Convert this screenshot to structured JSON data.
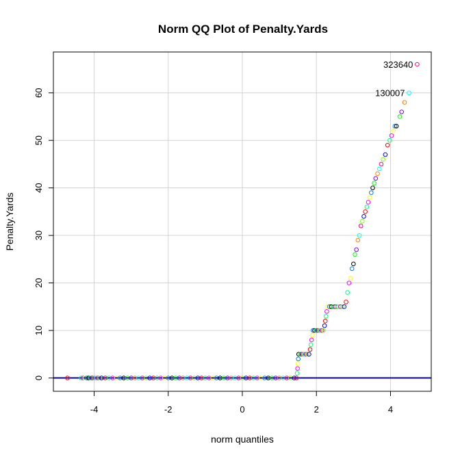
{
  "chart_data": {
    "type": "scatter",
    "title": "Norm QQ Plot of Penalty.Yards",
    "xlabel": "norm quantiles",
    "ylabel": "Penalty.Yards",
    "xlim": [
      -5.1,
      5.1
    ],
    "ylim": [
      -2.8,
      68.6
    ],
    "xticks": [
      -4,
      -2,
      0,
      2,
      4
    ],
    "yticks": [
      0,
      10,
      20,
      30,
      40,
      50,
      60
    ],
    "grid": true,
    "reference_line": {
      "intercept": 0,
      "slope": 0,
      "color": "#00008b"
    },
    "point_marker": "open-circle",
    "point_colors": [
      "#ff0000",
      "#ff8000",
      "#ffff00",
      "#80ff00",
      "#00ff00",
      "#00ff80",
      "#00ffff",
      "#0080ff",
      "#0000ff",
      "#8000ff",
      "#ff00ff",
      "#ff0080",
      "#000000"
    ],
    "points": [
      {
        "x": -4.72,
        "y": 0
      },
      {
        "x": -4.35,
        "y": 0
      },
      {
        "x": -4.3,
        "y": 0
      },
      {
        "x": -4.25,
        "y": 0
      },
      {
        "x": -4.2,
        "y": 0
      },
      {
        "x": -4.15,
        "y": 0
      },
      {
        "x": -4.1,
        "y": 0
      },
      {
        "x": -4.05,
        "y": 0
      },
      {
        "x": -4.0,
        "y": 0
      },
      {
        "x": -3.95,
        "y": 0
      },
      {
        "x": -3.9,
        "y": 0
      },
      {
        "x": -3.85,
        "y": 0
      },
      {
        "x": -3.8,
        "y": 0
      },
      {
        "x": -3.7,
        "y": 0
      },
      {
        "x": -3.6,
        "y": 0
      },
      {
        "x": -3.5,
        "y": 0
      },
      {
        "x": -3.4,
        "y": 0
      },
      {
        "x": -3.3,
        "y": 0
      },
      {
        "x": -3.2,
        "y": 0
      },
      {
        "x": -3.1,
        "y": 0
      },
      {
        "x": -3.0,
        "y": 0
      },
      {
        "x": -2.9,
        "y": 0
      },
      {
        "x": -2.8,
        "y": 0
      },
      {
        "x": -2.7,
        "y": 0
      },
      {
        "x": -2.6,
        "y": 0
      },
      {
        "x": -2.5,
        "y": 0
      },
      {
        "x": -2.4,
        "y": 0
      },
      {
        "x": -2.3,
        "y": 0
      },
      {
        "x": -2.2,
        "y": 0
      },
      {
        "x": -2.1,
        "y": 0
      },
      {
        "x": -2.0,
        "y": 0
      },
      {
        "x": -1.9,
        "y": 0
      },
      {
        "x": -1.8,
        "y": 0
      },
      {
        "x": -1.7,
        "y": 0
      },
      {
        "x": -1.6,
        "y": 0
      },
      {
        "x": -1.5,
        "y": 0
      },
      {
        "x": -1.4,
        "y": 0
      },
      {
        "x": -1.3,
        "y": 0
      },
      {
        "x": -1.2,
        "y": 0
      },
      {
        "x": -1.1,
        "y": 0
      },
      {
        "x": -1.0,
        "y": 0
      },
      {
        "x": -0.9,
        "y": 0
      },
      {
        "x": -0.8,
        "y": 0
      },
      {
        "x": -0.7,
        "y": 0
      },
      {
        "x": -0.6,
        "y": 0
      },
      {
        "x": -0.5,
        "y": 0
      },
      {
        "x": -0.4,
        "y": 0
      },
      {
        "x": -0.3,
        "y": 0
      },
      {
        "x": -0.2,
        "y": 0
      },
      {
        "x": -0.1,
        "y": 0
      },
      {
        "x": 0.0,
        "y": 0
      },
      {
        "x": 0.1,
        "y": 0
      },
      {
        "x": 0.2,
        "y": 0
      },
      {
        "x": 0.3,
        "y": 0
      },
      {
        "x": 0.4,
        "y": 0
      },
      {
        "x": 0.5,
        "y": 0
      },
      {
        "x": 0.6,
        "y": 0
      },
      {
        "x": 0.7,
        "y": 0
      },
      {
        "x": 0.8,
        "y": 0
      },
      {
        "x": 0.9,
        "y": 0
      },
      {
        "x": 1.0,
        "y": 0
      },
      {
        "x": 1.1,
        "y": 0
      },
      {
        "x": 1.2,
        "y": 0
      },
      {
        "x": 1.3,
        "y": 0
      },
      {
        "x": 1.4,
        "y": 0
      },
      {
        "x": 1.46,
        "y": 0
      },
      {
        "x": 1.48,
        "y": 1
      },
      {
        "x": 1.49,
        "y": 2
      },
      {
        "x": 1.5,
        "y": 3
      },
      {
        "x": 1.51,
        "y": 4
      },
      {
        "x": 1.52,
        "y": 5
      },
      {
        "x": 1.56,
        "y": 5
      },
      {
        "x": 1.6,
        "y": 5
      },
      {
        "x": 1.64,
        "y": 5
      },
      {
        "x": 1.68,
        "y": 5
      },
      {
        "x": 1.72,
        "y": 5
      },
      {
        "x": 1.76,
        "y": 5
      },
      {
        "x": 1.8,
        "y": 5
      },
      {
        "x": 1.83,
        "y": 6
      },
      {
        "x": 1.85,
        "y": 7
      },
      {
        "x": 1.87,
        "y": 8
      },
      {
        "x": 1.89,
        "y": 9
      },
      {
        "x": 1.91,
        "y": 10
      },
      {
        "x": 1.95,
        "y": 10
      },
      {
        "x": 1.99,
        "y": 10
      },
      {
        "x": 2.03,
        "y": 10
      },
      {
        "x": 2.07,
        "y": 10
      },
      {
        "x": 2.11,
        "y": 10
      },
      {
        "x": 2.15,
        "y": 10
      },
      {
        "x": 2.19,
        "y": 10
      },
      {
        "x": 2.22,
        "y": 11
      },
      {
        "x": 2.24,
        "y": 12
      },
      {
        "x": 2.26,
        "y": 13
      },
      {
        "x": 2.28,
        "y": 14
      },
      {
        "x": 2.3,
        "y": 15
      },
      {
        "x": 2.35,
        "y": 15
      },
      {
        "x": 2.4,
        "y": 15
      },
      {
        "x": 2.45,
        "y": 15
      },
      {
        "x": 2.5,
        "y": 15
      },
      {
        "x": 2.55,
        "y": 15
      },
      {
        "x": 2.6,
        "y": 15
      },
      {
        "x": 2.65,
        "y": 15
      },
      {
        "x": 2.7,
        "y": 15
      },
      {
        "x": 2.75,
        "y": 15
      },
      {
        "x": 2.8,
        "y": 16
      },
      {
        "x": 2.84,
        "y": 18
      },
      {
        "x": 2.88,
        "y": 20
      },
      {
        "x": 2.92,
        "y": 21
      },
      {
        "x": 2.96,
        "y": 23
      },
      {
        "x": 3.0,
        "y": 24
      },
      {
        "x": 3.04,
        "y": 26
      },
      {
        "x": 3.08,
        "y": 27
      },
      {
        "x": 3.12,
        "y": 29
      },
      {
        "x": 3.16,
        "y": 30
      },
      {
        "x": 3.2,
        "y": 32
      },
      {
        "x": 3.24,
        "y": 33
      },
      {
        "x": 3.28,
        "y": 34
      },
      {
        "x": 3.32,
        "y": 35
      },
      {
        "x": 3.36,
        "y": 36
      },
      {
        "x": 3.4,
        "y": 37
      },
      {
        "x": 3.44,
        "y": 38
      },
      {
        "x": 3.48,
        "y": 39
      },
      {
        "x": 3.52,
        "y": 40
      },
      {
        "x": 3.56,
        "y": 41
      },
      {
        "x": 3.6,
        "y": 42
      },
      {
        "x": 3.65,
        "y": 43
      },
      {
        "x": 3.7,
        "y": 44
      },
      {
        "x": 3.75,
        "y": 45
      },
      {
        "x": 3.8,
        "y": 46
      },
      {
        "x": 3.86,
        "y": 47
      },
      {
        "x": 3.92,
        "y": 49
      },
      {
        "x": 3.98,
        "y": 50
      },
      {
        "x": 4.03,
        "y": 51
      },
      {
        "x": 4.08,
        "y": 52
      },
      {
        "x": 4.12,
        "y": 53
      },
      {
        "x": 4.16,
        "y": 53
      },
      {
        "x": 4.25,
        "y": 55
      },
      {
        "x": 4.3,
        "y": 56
      },
      {
        "x": 4.38,
        "y": 58
      },
      {
        "x": 4.5,
        "y": 60,
        "label": "130007"
      },
      {
        "x": 4.72,
        "y": 66,
        "label": "323640"
      }
    ]
  }
}
